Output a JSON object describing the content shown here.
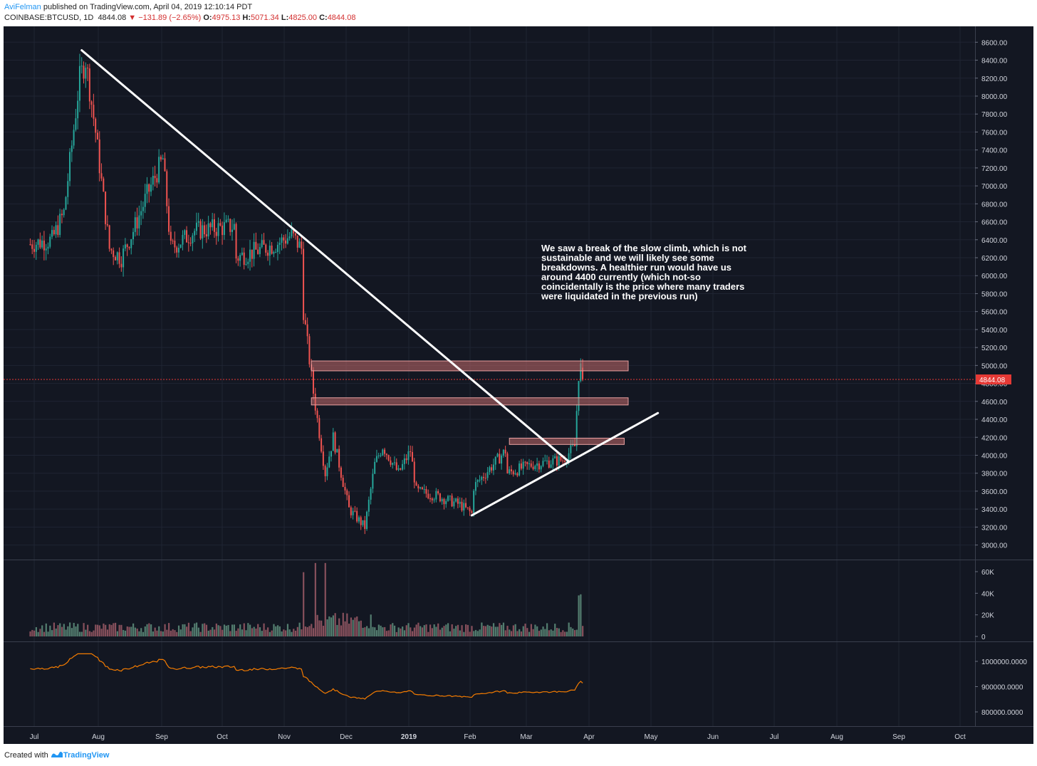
{
  "header": {
    "author": "AviFelman",
    "published": "published on TradingView.com, April 04, 2019 12:10:14 PDT",
    "symbol": "COINBASE:BTCUSD, 1D",
    "last": "4844.08",
    "change": "−131.89 (−2.65%)",
    "o_label": "O:",
    "o": "4975.13",
    "h_label": "H:",
    "h": "5071.34",
    "l_label": "L:",
    "l": "4825.00",
    "c_label": "C:",
    "c": "4844.08"
  },
  "footer": {
    "created_with": "Created with",
    "brand": "TradingView"
  },
  "colors": {
    "background": "#131722",
    "up": "#26a69a",
    "down": "#ef5350",
    "grid": "#1f2433",
    "axis_text": "#d1d4dc",
    "price_line": "#e53935",
    "zone_fill": "#c56b6b",
    "indicator": "#f57c00",
    "trendline": "#ffffff"
  },
  "chart_data": {
    "type": "candlestick",
    "price_axis": {
      "ticks": [
        "8600.00",
        "8400.00",
        "8200.00",
        "8000.00",
        "7800.00",
        "7600.00",
        "7400.00",
        "7200.00",
        "7000.00",
        "6800.00",
        "6600.00",
        "6400.00",
        "6200.00",
        "6000.00",
        "5800.00",
        "5600.00",
        "5400.00",
        "5200.00",
        "5000.00",
        "4800.00",
        "4600.00",
        "4400.00",
        "4200.00",
        "4000.00",
        "3800.00",
        "3600.00",
        "3400.00",
        "3200.00",
        "3000.00"
      ],
      "ylim": [
        2800,
        8800
      ]
    },
    "last_price_label": "4844.08",
    "last_price": 4844.08,
    "time_axis": [
      "Jul",
      "Aug",
      "Sep",
      "Oct",
      "Nov",
      "Dec",
      "2019",
      "Feb",
      "Mar",
      "Apr",
      "May",
      "Jun",
      "Jul",
      "Aug",
      "Sep",
      "Oct"
    ],
    "key_points": [
      {
        "date": "2018-06-29",
        "close": 6350
      },
      {
        "date": "2018-07-10",
        "close": 6400
      },
      {
        "date": "2018-07-16",
        "close": 6700
      },
      {
        "date": "2018-07-24",
        "close": 8200
      },
      {
        "date": "2018-07-27",
        "close": 8400
      },
      {
        "date": "2018-08-01",
        "close": 7600
      },
      {
        "date": "2018-08-08",
        "close": 6300
      },
      {
        "date": "2018-08-14",
        "close": 6200
      },
      {
        "date": "2018-08-20",
        "close": 6500
      },
      {
        "date": "2018-08-27",
        "close": 6900
      },
      {
        "date": "2018-09-04",
        "close": 7300
      },
      {
        "date": "2018-09-08",
        "close": 6300
      },
      {
        "date": "2018-09-20",
        "close": 6500
      },
      {
        "date": "2018-10-10",
        "close": 6550
      },
      {
        "date": "2018-10-11",
        "close": 6200
      },
      {
        "date": "2018-10-31",
        "close": 6350
      },
      {
        "date": "2018-11-08",
        "close": 6450
      },
      {
        "date": "2018-11-13",
        "close": 6300
      },
      {
        "date": "2018-11-14",
        "close": 5600
      },
      {
        "date": "2018-11-19",
        "close": 4700
      },
      {
        "date": "2018-11-25",
        "close": 3800
      },
      {
        "date": "2018-11-29",
        "close": 4200
      },
      {
        "date": "2018-12-07",
        "close": 3400
      },
      {
        "date": "2018-12-15",
        "close": 3200
      },
      {
        "date": "2018-12-20",
        "close": 3900
      },
      {
        "date": "2018-12-24",
        "close": 4100
      },
      {
        "date": "2019-01-01",
        "close": 3800
      },
      {
        "date": "2019-01-07",
        "close": 4050
      },
      {
        "date": "2019-01-10",
        "close": 3600
      },
      {
        "date": "2019-01-20",
        "close": 3550
      },
      {
        "date": "2019-02-01",
        "close": 3450
      },
      {
        "date": "2019-02-07",
        "close": 3350
      },
      {
        "date": "2019-02-08",
        "close": 3650
      },
      {
        "date": "2019-02-18",
        "close": 3900
      },
      {
        "date": "2019-02-24",
        "close": 4050
      },
      {
        "date": "2019-02-25",
        "close": 3800
      },
      {
        "date": "2019-03-10",
        "close": 3900
      },
      {
        "date": "2019-03-25",
        "close": 3950
      },
      {
        "date": "2019-03-31",
        "close": 4100
      },
      {
        "date": "2019-04-02",
        "close": 4900
      },
      {
        "date": "2019-04-03",
        "close": 4975
      },
      {
        "date": "2019-04-04",
        "close": 4844.08
      }
    ],
    "volume_axis": {
      "ticks": [
        "60K",
        "40K",
        "20K",
        "0"
      ],
      "ylim": [
        0,
        68000
      ]
    },
    "volume_spikes": [
      {
        "date": "2018-11-20",
        "value": 67000
      },
      {
        "date": "2018-11-14",
        "value": 35000
      },
      {
        "date": "2018-11-25",
        "value": 40000
      },
      {
        "date": "2019-04-02",
        "value": 38000
      },
      {
        "date": "2019-04-03",
        "value": 39000
      }
    ],
    "indicator_axis": {
      "ticks": [
        "1000000.0000",
        "900000.0000",
        "800000.0000"
      ],
      "ylim": [
        745000,
        1035000
      ]
    },
    "zones": [
      {
        "from_date": "2018-11-18",
        "to_date": "2019-04-27",
        "low": 4940,
        "high": 5050
      },
      {
        "from_date": "2018-11-18",
        "to_date": "2019-04-27",
        "low": 4560,
        "high": 4640
      },
      {
        "from_date": "2019-02-26",
        "to_date": "2019-04-25",
        "low": 4120,
        "high": 4190
      }
    ],
    "trendlines": [
      {
        "from": {
          "date": "2018-07-25",
          "price": 8510
        },
        "to": {
          "date": "2019-03-28",
          "price": 3930
        }
      },
      {
        "from": {
          "date": "2019-02-07",
          "price": 3330
        },
        "to": {
          "date": "2019-05-12",
          "price": 4470
        }
      }
    ],
    "annotation": "We saw a break of the slow climb, which is not sustainable and we will likely see some breakdowns. A healthier run would have us around 4400 currently (which not-so coincidentally is the price where many traders were liquidated in the previous run)"
  }
}
